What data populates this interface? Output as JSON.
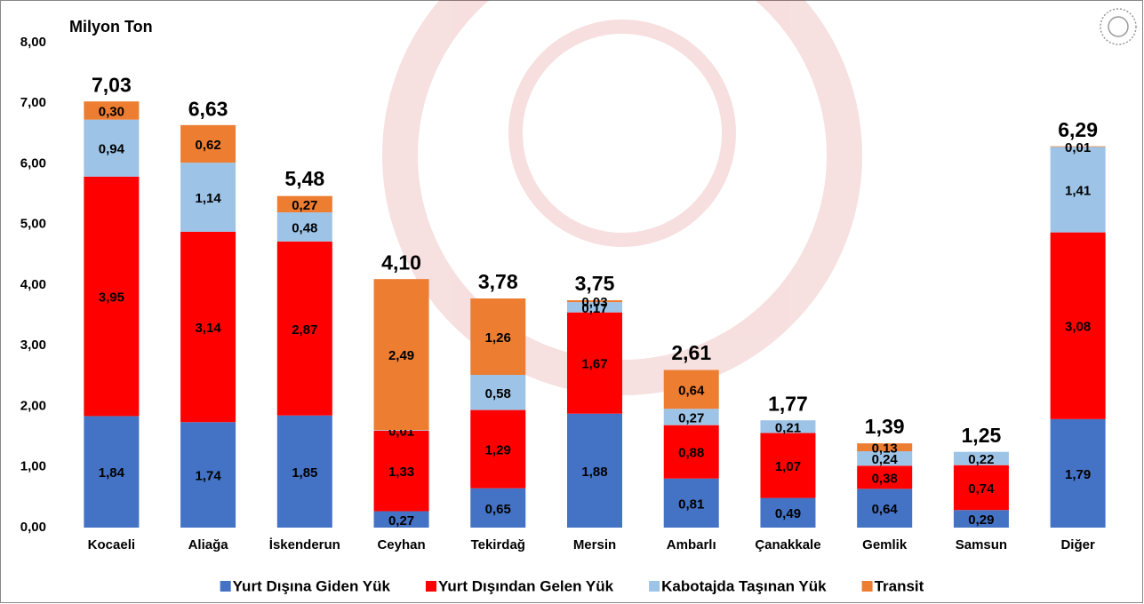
{
  "chart_data": {
    "type": "stacked_bar",
    "y_label": "Milyon Ton",
    "categories": [
      "Kocaeli",
      "Aliağa",
      "İskenderun",
      "Ceyhan",
      "Tekirdağ",
      "Mersin",
      "Ambarlı",
      "Çanakkale",
      "Gemlik",
      "Samsun",
      "Diğer"
    ],
    "series": [
      {
        "name": "Yurt Dışına Giden Yük",
        "color": "#4472c4",
        "values": [
          1.84,
          1.74,
          1.85,
          0.27,
          0.65,
          1.88,
          0.81,
          0.49,
          0.64,
          0.29,
          1.79
        ],
        "value_labels": [
          "1,84",
          "1,74",
          "1,85",
          "0,27",
          "0,65",
          "1,88",
          "0,81",
          "0,49",
          "0,64",
          "0,29",
          "1,79"
        ]
      },
      {
        "name": "Yurt Dışından Gelen Yük",
        "color": "#ff0000",
        "values": [
          3.95,
          3.14,
          2.87,
          1.33,
          1.29,
          1.67,
          0.88,
          1.07,
          0.38,
          0.74,
          3.08
        ],
        "value_labels": [
          "3,95",
          "3,14",
          "2,87",
          "1,33",
          "1,29",
          "1,67",
          "0,88",
          "1,07",
          "0,38",
          "0,74",
          "3,08"
        ]
      },
      {
        "name": "Kabotajda Taşınan Yük",
        "color": "#9dc3e6",
        "values": [
          0.94,
          1.14,
          0.48,
          0.01,
          0.58,
          0.17,
          0.27,
          0.21,
          0.24,
          0.22,
          1.41
        ],
        "value_labels": [
          "0,94",
          "1,14",
          "0,48",
          "0,01",
          "0,58",
          "0,17",
          "0,27",
          "0,21",
          "0,24",
          "0,22",
          "1,41"
        ]
      },
      {
        "name": "Transit",
        "color": "#ed7d31",
        "values": [
          0.3,
          0.62,
          0.27,
          2.49,
          1.26,
          0.03,
          0.64,
          null,
          0.13,
          null,
          0.01
        ],
        "value_labels": [
          "0,30",
          "0,62",
          "0,27",
          "2,49",
          "1,26",
          "0,03",
          "0,64",
          null,
          "0,13",
          null,
          "0,01"
        ]
      }
    ],
    "totals": [
      7.03,
      6.63,
      5.48,
      4.1,
      3.78,
      3.75,
      2.61,
      1.77,
      1.39,
      1.25,
      6.29
    ],
    "total_labels": [
      "7,03",
      "6,63",
      "5,48",
      "4,10",
      "3,78",
      "3,75",
      "2,61",
      "1,77",
      "1,39",
      "1,25",
      "6,29"
    ],
    "ylim": [
      0,
      8
    ],
    "yticks": [
      {
        "value": 0,
        "label": "0,00"
      },
      {
        "value": 1,
        "label": "1,00"
      },
      {
        "value": 2,
        "label": "2,00"
      },
      {
        "value": 3,
        "label": "3,00"
      },
      {
        "value": 4,
        "label": "4,00"
      },
      {
        "value": 5,
        "label": "5,00"
      },
      {
        "value": 6,
        "label": "6,00"
      },
      {
        "value": 7,
        "label": "7,00"
      },
      {
        "value": 8,
        "label": "8,00"
      }
    ],
    "grid": false,
    "legend": "bottom"
  }
}
